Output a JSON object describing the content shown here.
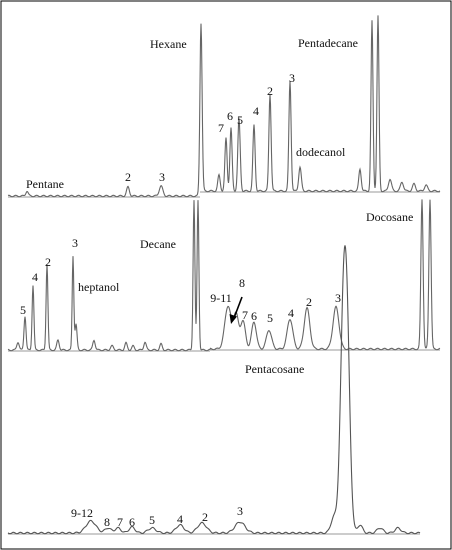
{
  "chart_data": [
    {
      "type": "line",
      "panel": "top",
      "compound_labels": [
        {
          "key": "pentane",
          "text": "Pentane"
        },
        {
          "key": "hexane",
          "text": "Hexane"
        },
        {
          "key": "pentadecane",
          "text": "Pentadecane"
        },
        {
          "key": "dodecanol",
          "text": "dodecanol"
        }
      ],
      "peak_labels": [
        "2",
        "3",
        "7",
        "6",
        "5",
        "4",
        "2",
        "3"
      ]
    },
    {
      "type": "line",
      "panel": "middle",
      "compound_labels": [
        {
          "key": "decane",
          "text": "Decane"
        },
        {
          "key": "docosane",
          "text": "Docosane"
        },
        {
          "key": "heptanol",
          "text": "heptanol"
        }
      ],
      "peak_labels": [
        "5",
        "4",
        "2",
        "3",
        "9-11",
        "8",
        "7",
        "6",
        "5",
        "4",
        "2",
        "3"
      ]
    },
    {
      "type": "line",
      "panel": "bottom",
      "compound_labels": [
        {
          "key": "pentacosane",
          "text": "Pentacosane"
        }
      ],
      "peak_labels": [
        "9-12",
        "8",
        "7",
        "6",
        "5",
        "4",
        "2",
        "3"
      ]
    }
  ]
}
